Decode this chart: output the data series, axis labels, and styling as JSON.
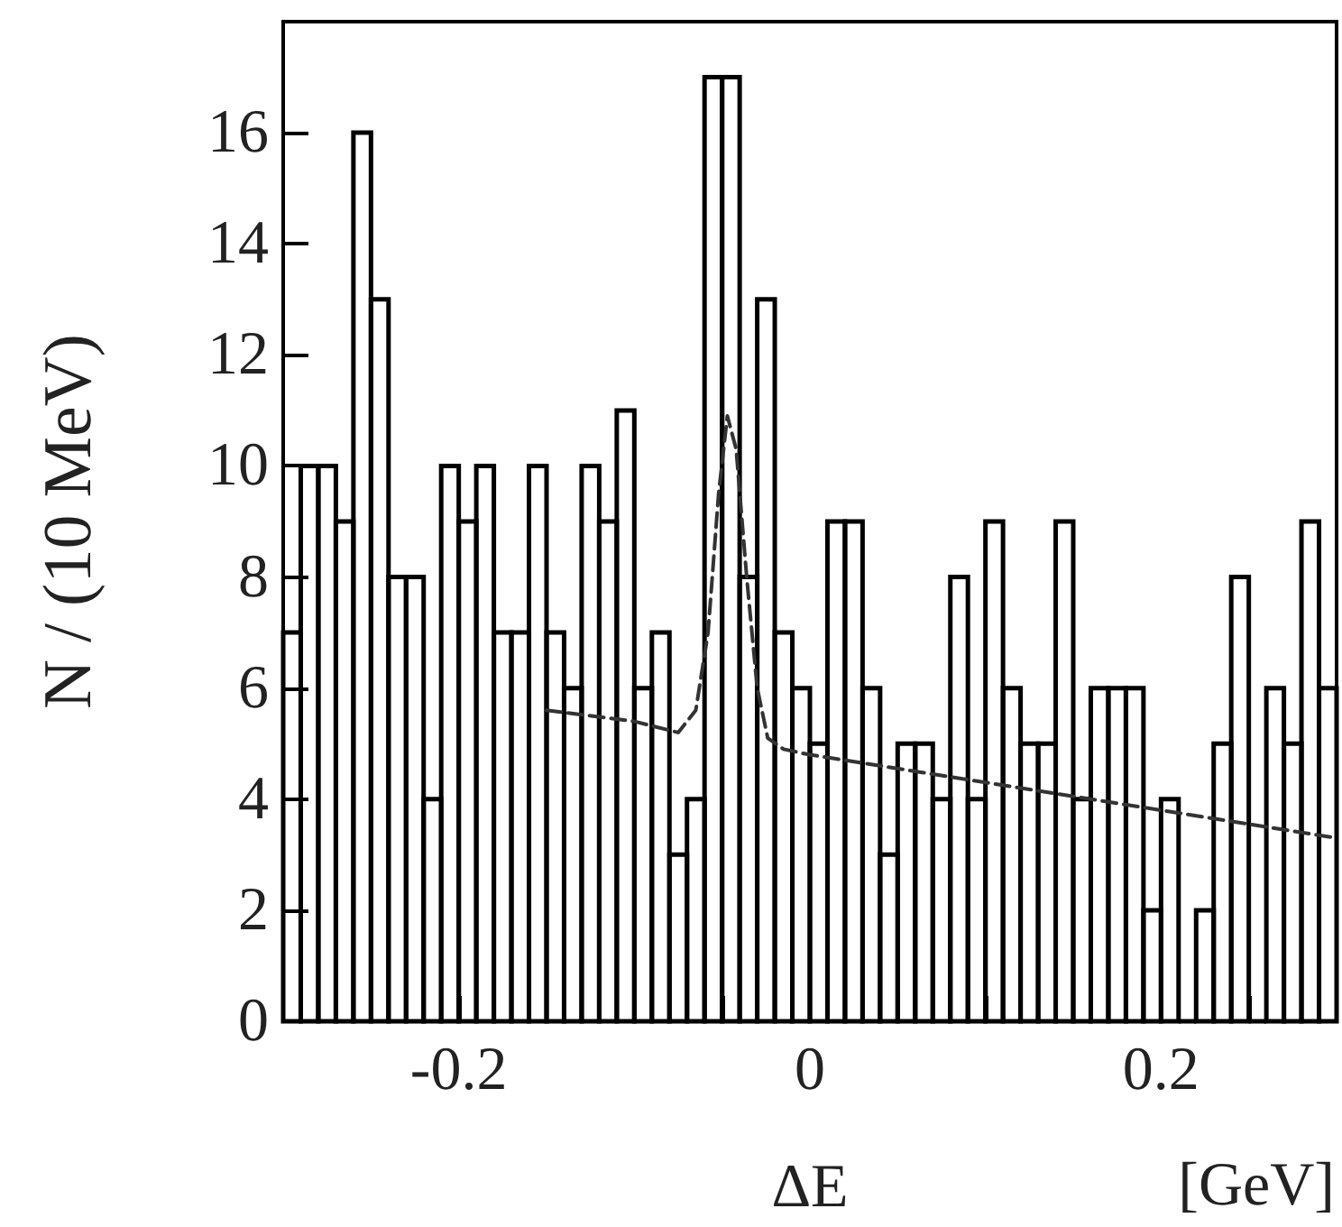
{
  "chart_data": {
    "type": "histogram",
    "xlabel": "ΔE",
    "ylabel": "N / (10 MeV)",
    "annotations": [
      "[GeV]"
    ],
    "color": "#000000",
    "bins": [
      -0.3,
      -0.29,
      -0.28,
      -0.27,
      -0.26,
      -0.25,
      -0.24,
      -0.23,
      -0.22,
      -0.21,
      -0.2,
      -0.19,
      -0.18,
      -0.17,
      -0.16,
      -0.15,
      -0.14,
      -0.13,
      -0.12,
      -0.11,
      -0.1,
      -0.09,
      -0.08,
      -0.07,
      -0.06,
      -0.05,
      -0.04,
      -0.03,
      -0.02,
      -0.01,
      0,
      0.01,
      0.02,
      0.03,
      0.04,
      0.05,
      0.06,
      0.07,
      0.08,
      0.09,
      0.1,
      0.11,
      0.12,
      0.13,
      0.14,
      0.15,
      0.16,
      0.17,
      0.18,
      0.19,
      0.2,
      0.21,
      0.22,
      0.23,
      0.24,
      0.25,
      0.26,
      0.27,
      0.28,
      0.29,
      0.3
    ],
    "values": [
      7,
      10,
      10,
      9,
      16,
      13,
      8,
      8,
      4,
      10,
      9,
      10,
      7,
      7,
      10,
      7,
      6,
      10,
      9,
      11,
      6,
      7,
      3,
      4,
      17,
      17,
      8,
      13,
      7,
      6,
      5,
      9,
      9,
      6,
      3,
      5,
      5,
      4,
      8,
      4,
      9,
      6,
      5,
      5,
      9,
      4,
      6,
      6,
      6,
      2,
      4,
      0,
      2,
      5,
      8,
      0,
      6,
      5,
      9,
      6
    ],
    "series": [
      {
        "type": "line",
        "color": "#333333",
        "line_style": "dashed",
        "marker": "none",
        "x": [
          -0.15,
          -0.1,
          -0.075,
          -0.065,
          -0.058,
          -0.052,
          -0.047,
          -0.042,
          -0.036,
          -0.03,
          -0.024,
          -0.015,
          0,
          0.1,
          0.2,
          0.3
        ],
        "values": [
          5.6,
          5.4,
          5.2,
          5.6,
          7,
          9.5,
          10.9,
          10.3,
          8,
          6,
          5.1,
          4.9,
          4.8,
          4.3,
          3.8,
          3.3
        ]
      }
    ],
    "xlim": [
      -0.3,
      0.3
    ],
    "xticks": [
      {
        "value": -0.25,
        "label": null
      },
      -0.2,
      {
        "value": -0.15,
        "label": null
      },
      {
        "value": -0.1,
        "label": null
      },
      {
        "value": -0.05,
        "label": null
      },
      0,
      {
        "value": 0.05,
        "label": null
      },
      {
        "value": 0.1,
        "label": null
      },
      {
        "value": 0.15,
        "label": null
      },
      0.2,
      {
        "value": 0.25,
        "label": null
      }
    ],
    "ylim": [
      0,
      18
    ],
    "yticks": [
      0,
      2,
      4,
      6,
      8,
      10,
      12,
      14,
      16
    ]
  }
}
